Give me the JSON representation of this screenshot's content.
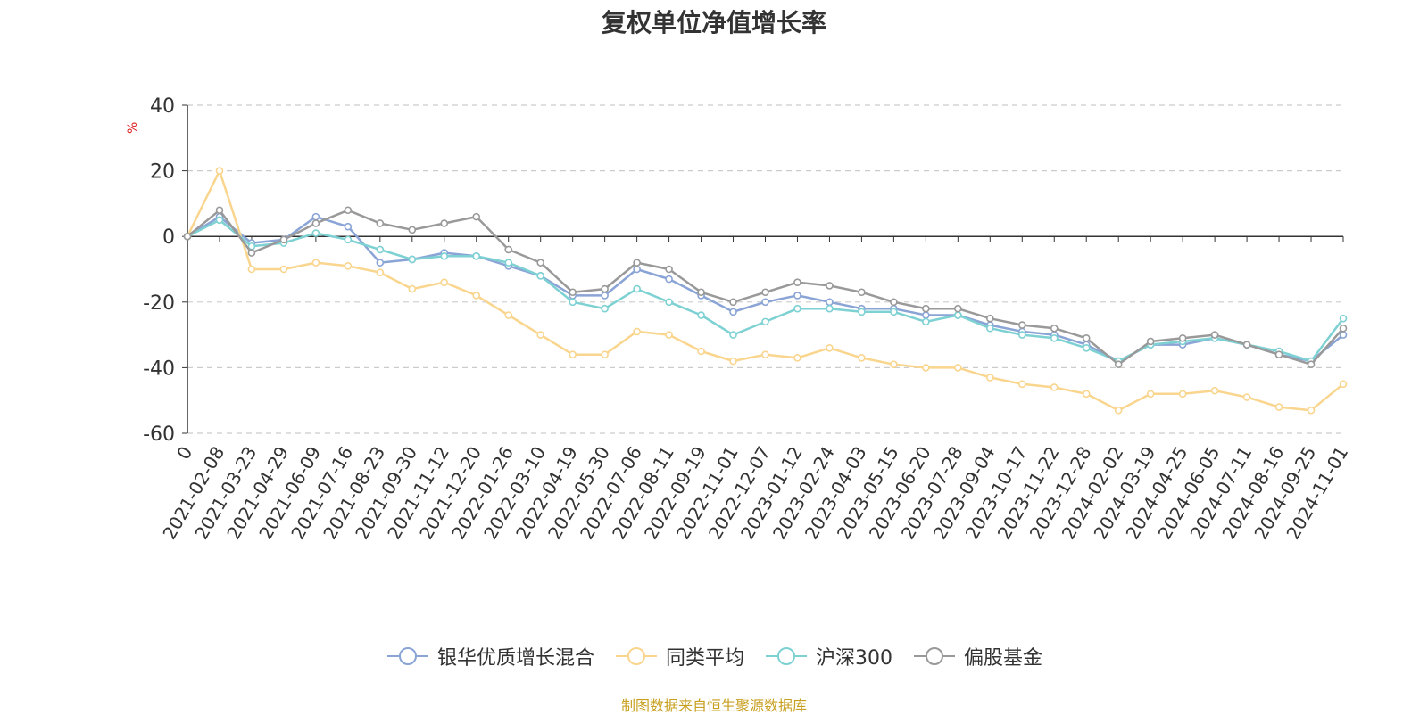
{
  "chart_data": {
    "type": "line",
    "title": "复权单位净值增长率",
    "ylabel": "%",
    "ylim": [
      -60,
      40
    ],
    "yticks": [
      40,
      20,
      0,
      -20,
      -40,
      -60
    ],
    "grid": true,
    "legend_position": "bottom",
    "categories": [
      "0",
      "2021-02-08",
      "2021-03-23",
      "2021-04-29",
      "2021-06-09",
      "2021-07-16",
      "2021-08-23",
      "2021-09-30",
      "2021-11-12",
      "2021-12-20",
      "2022-01-26",
      "2022-03-10",
      "2022-04-19",
      "2022-05-30",
      "2022-07-06",
      "2022-08-11",
      "2022-09-19",
      "2022-11-01",
      "2022-12-07",
      "2023-01-12",
      "2023-02-24",
      "2023-04-03",
      "2023-05-15",
      "2023-06-20",
      "2023-07-28",
      "2023-09-04",
      "2023-10-17",
      "2023-11-22",
      "2023-12-28",
      "2024-02-02",
      "2024-03-19",
      "2024-04-25",
      "2024-06-05",
      "2024-07-11",
      "2024-08-16",
      "2024-09-25",
      "2024-11-01"
    ],
    "series": [
      {
        "name": "银华优质增长混合",
        "color": "#8aa4d6",
        "values": [
          0,
          6,
          -2,
          -1,
          6,
          3,
          -8,
          -7,
          -5,
          -6,
          -9,
          -12,
          -18,
          -18,
          -10,
          -13,
          -18,
          -23,
          -20,
          -18,
          -20,
          -22,
          -22,
          -24,
          -24,
          -27,
          -29,
          -30,
          -33,
          -38,
          -33,
          -33,
          -31,
          -33,
          -36,
          -38,
          -30
        ]
      },
      {
        "name": "同类平均",
        "color": "#f9d58e",
        "values": [
          0,
          20,
          -10,
          -10,
          -8,
          -9,
          -11,
          -16,
          -14,
          -18,
          -24,
          -30,
          -36,
          -36,
          -29,
          -30,
          -35,
          -38,
          -36,
          -37,
          -34,
          -37,
          -39,
          -40,
          -40,
          -43,
          -45,
          -46,
          -48,
          -53,
          -48,
          -48,
          -47,
          -49,
          -52,
          -53,
          -45
        ]
      },
      {
        "name": "沪深300",
        "color": "#7dd1d3",
        "values": [
          0,
          5,
          -3,
          -2,
          1,
          -1,
          -4,
          -7,
          -6,
          -6,
          -8,
          -12,
          -20,
          -22,
          -16,
          -20,
          -24,
          -30,
          -26,
          -22,
          -22,
          -23,
          -23,
          -26,
          -24,
          -28,
          -30,
          -31,
          -34,
          -38,
          -33,
          -32,
          -31,
          -33,
          -35,
          -38,
          -25
        ]
      },
      {
        "name": "偏股基金",
        "color": "#999999",
        "values": [
          0,
          8,
          -5,
          -1,
          4,
          8,
          4,
          2,
          4,
          6,
          -4,
          -8,
          -17,
          -16,
          -8,
          -10,
          -17,
          -20,
          -17,
          -14,
          -15,
          -17,
          -20,
          -22,
          -22,
          -25,
          -27,
          -28,
          -31,
          -39,
          -32,
          -31,
          -30,
          -33,
          -36,
          -39,
          -28
        ]
      }
    ]
  },
  "source_note": "制图数据来自恒生聚源数据库"
}
